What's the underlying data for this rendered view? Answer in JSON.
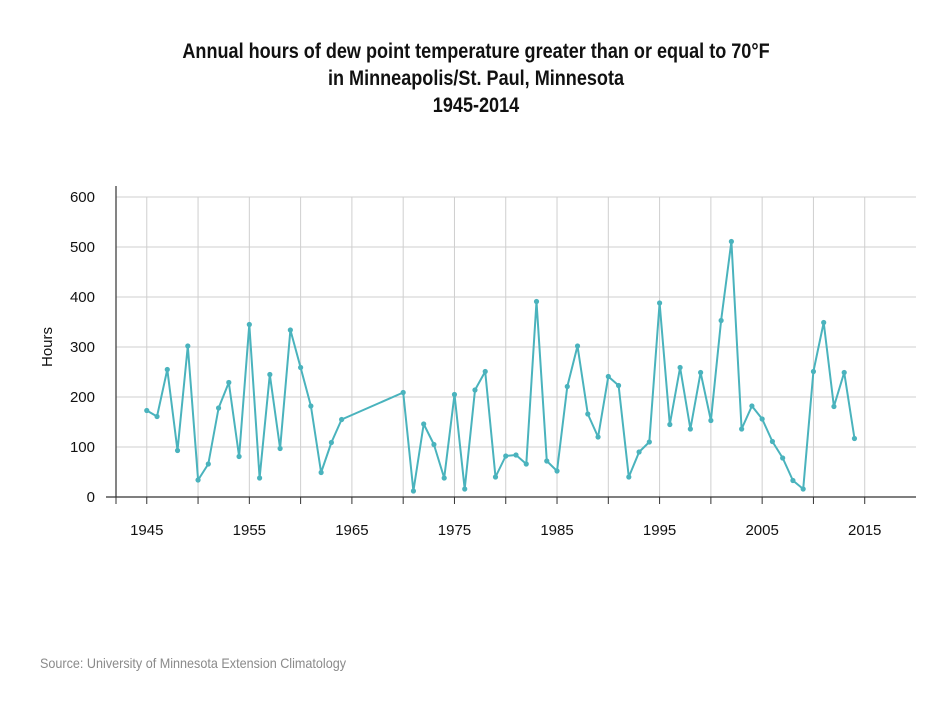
{
  "chart_data": {
    "type": "line",
    "title": [
      "Annual hours of dew point temperature greater than or equal to 70°F",
      "in Minneapolis/St. Paul, Minnesota",
      "1945-2014"
    ],
    "xlabel": "",
    "ylabel": "Hours",
    "xlim": [
      1942,
      2020
    ],
    "ylim": [
      0,
      600
    ],
    "x_ticks": [
      1945,
      1955,
      1965,
      1975,
      1985,
      1995,
      2005,
      2015
    ],
    "y_ticks": [
      0,
      100,
      200,
      300,
      400,
      500,
      600
    ],
    "grid": true,
    "line_color": "#4ab3bd",
    "series": [
      {
        "x": [
          1945,
          1946,
          1947,
          1948,
          1949,
          1950,
          1951,
          1952,
          1953,
          1954,
          1955,
          1956,
          1957,
          1958,
          1959,
          1960,
          1961,
          1962,
          1963,
          1964,
          1970,
          1971,
          1972,
          1973,
          1974,
          1975,
          1976,
          1977,
          1978,
          1979,
          1980,
          1981,
          1982,
          1983,
          1984,
          1985,
          1986,
          1987,
          1988,
          1989,
          1990,
          1991,
          1992,
          1993,
          1994,
          1995,
          1996,
          1997,
          1998,
          1999,
          2000,
          2001,
          2002,
          2003,
          2004,
          2005,
          2006,
          2007,
          2008,
          2009,
          2010,
          2011,
          2012,
          2013,
          2014
        ],
        "values": [
          173,
          161,
          255,
          93,
          302,
          34,
          66,
          178,
          229,
          81,
          345,
          38,
          245,
          97,
          334,
          259,
          182,
          49,
          109,
          155,
          209,
          12,
          146,
          105,
          38,
          205,
          16,
          214,
          251,
          40,
          82,
          84,
          66,
          391,
          72,
          52,
          221,
          302,
          166,
          120,
          241,
          223,
          40,
          90,
          110,
          388,
          145,
          259,
          136,
          249,
          153,
          353,
          511,
          136,
          182,
          156,
          111,
          78,
          33,
          16,
          251,
          349,
          181,
          249,
          117
        ]
      }
    ]
  },
  "source": "Source: University of Minnesota Extension Climatology"
}
